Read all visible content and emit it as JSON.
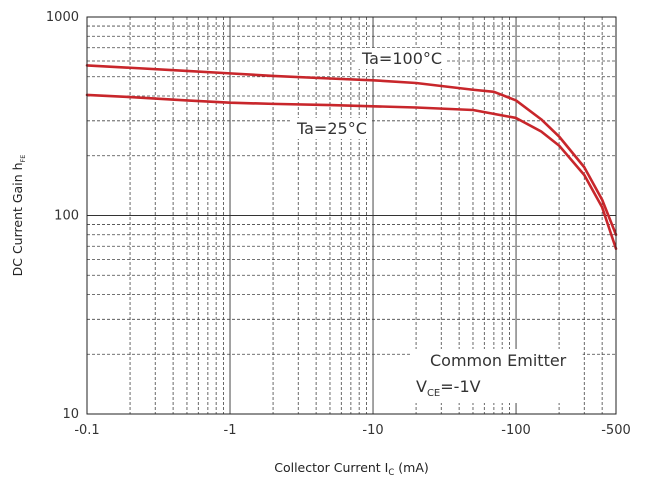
{
  "chart_data": {
    "type": "line",
    "xscale": "log",
    "yscale": "log",
    "x_direction": "negative",
    "xlim": [
      -0.1,
      -500
    ],
    "ylim": [
      10,
      1000
    ],
    "x_ticks": [
      -0.1,
      -1,
      -10,
      -100,
      -500
    ],
    "x_tick_labels": [
      "-0.1",
      "-1",
      "-10",
      "-100",
      "-500"
    ],
    "y_ticks": [
      10,
      100,
      1000
    ],
    "y_tick_labels": [
      "10",
      "100",
      "1000"
    ],
    "grid": true,
    "xlabel": {
      "prefix": "Collector Current I",
      "sub": "C",
      "suffix": " (mA)"
    },
    "ylabel": {
      "prefix": "DC Current Gain h",
      "sub": "FE"
    },
    "series": [
      {
        "name": "Ta=100°C",
        "color": "#c8262b",
        "x": [
          -0.1,
          -0.2,
          -0.5,
          -1,
          -2,
          -5,
          -10,
          -20,
          -50,
          -70,
          -100,
          -150,
          -200,
          -300,
          -400,
          -500
        ],
        "y": [
          570,
          555,
          535,
          520,
          505,
          490,
          480,
          465,
          430,
          420,
          380,
          305,
          250,
          175,
          120,
          80
        ]
      },
      {
        "name": "Ta=25°C",
        "color": "#c8262b",
        "x": [
          -0.1,
          -0.2,
          -0.5,
          -1,
          -2,
          -5,
          -10,
          -20,
          -50,
          -100,
          -150,
          -200,
          -300,
          -400,
          -500
        ],
        "y": [
          405,
          395,
          380,
          370,
          365,
          360,
          355,
          350,
          340,
          310,
          265,
          225,
          160,
          110,
          68
        ]
      }
    ],
    "annotations": [
      {
        "text": "Ta=100°C"
      },
      {
        "text": "Ta=25°C"
      },
      {
        "text": "Common Emitter"
      },
      {
        "prefix": "V",
        "sub": "CE",
        "suffix": "=-1V"
      }
    ]
  }
}
